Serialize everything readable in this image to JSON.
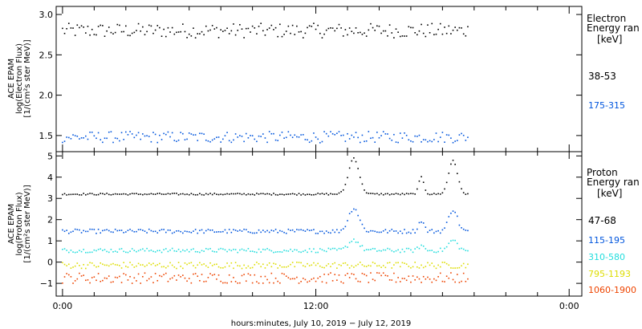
{
  "chart_data": [
    {
      "type": "scatter",
      "panel": "electron",
      "ylabel_lines": [
        "ACE EPAM",
        "log(Electron Flux)",
        "[1/(cm²s ster MeV)]"
      ],
      "ylim": [
        1.3,
        3.1
      ],
      "yticks": [
        1.5,
        2.0,
        2.5,
        3.0
      ],
      "ytick_labels": [
        "1.5",
        "2.0",
        "2.5",
        "3.0"
      ],
      "legend_title_lines": [
        "Electron",
        "Energy ran",
        "[keV]"
      ],
      "series": [
        {
          "name": "38-53",
          "color": "#000000",
          "baseline": 2.8,
          "noise": 0.09
        },
        {
          "name": "175-315",
          "color": "#0055dd",
          "baseline": 1.48,
          "noise": 0.07
        }
      ]
    },
    {
      "type": "scatter",
      "panel": "proton",
      "ylabel_lines": [
        "ACE EPAM",
        "log(Proton Flux)",
        "[1/(cm²s ster MeV)]"
      ],
      "ylim": [
        -1.6,
        5.2
      ],
      "yticks": [
        -1,
        0,
        1,
        2,
        3,
        4,
        5
      ],
      "ytick_labels": [
        "−1",
        "0",
        "1",
        "2",
        "3",
        "4",
        "5"
      ],
      "legend_title_lines": [
        "Proton",
        "Energy ran",
        "[keV]"
      ],
      "series": [
        {
          "name": "47-68",
          "color": "#000000",
          "baseline": 3.2,
          "noise": 0.04
        },
        {
          "name": "115-195",
          "color": "#0055dd",
          "baseline": 1.45,
          "noise": 0.1
        },
        {
          "name": "310-580",
          "color": "#22dddd",
          "baseline": 0.55,
          "noise": 0.1
        },
        {
          "name": "795-1193",
          "color": "#dddd00",
          "baseline": -0.15,
          "noise": 0.15
        },
        {
          "name": "1060-1900",
          "color": "#ee4400",
          "baseline": -0.75,
          "noise": 0.25
        }
      ],
      "spikes": [
        {
          "t": 13.8,
          "peak": 4.9,
          "width": 0.6
        },
        {
          "t": 17.0,
          "peak": 4.0,
          "width": 0.3
        },
        {
          "t": 18.5,
          "peak": 4.8,
          "width": 0.5
        }
      ]
    }
  ],
  "x": {
    "range_hours": [
      -0.3,
      24.6
    ],
    "data_end_hours": 19.3,
    "ticks": [
      0,
      12,
      24
    ],
    "tick_labels": [
      "0:00",
      "12:00",
      "0:00"
    ],
    "minor_step_hours": 1.5,
    "xlabel": "hours:minutes, July 10, 2019 − July 12, 2019"
  }
}
